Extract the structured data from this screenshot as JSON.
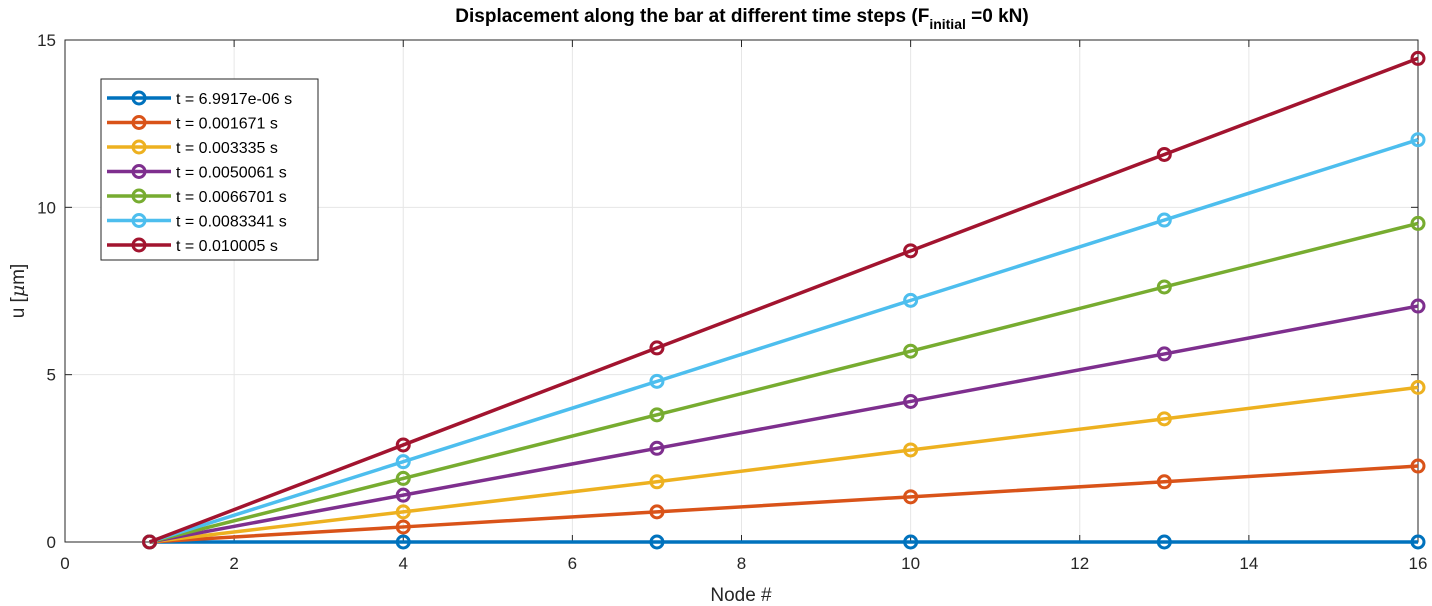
{
  "chart_data": {
    "type": "line",
    "title_main": "Displacement along the bar at different time steps (F",
    "title_sub": "initial",
    "title_end": " =0 kN)",
    "xlabel": "Node #",
    "ylabel_prefix": "u [",
    "ylabel_mu": "μ",
    "ylabel_suffix": "m]",
    "xlim": [
      0,
      16
    ],
    "ylim": [
      0,
      15
    ],
    "xticks": [
      0,
      2,
      4,
      6,
      8,
      10,
      12,
      14,
      16
    ],
    "yticks": [
      0,
      5,
      10,
      15
    ],
    "grid": true,
    "legend_location": "top-left",
    "x": [
      1,
      4,
      7,
      10,
      13,
      16
    ],
    "series": [
      {
        "name": "t = 6.9917e-06 s",
        "color": "#0072BD",
        "values": [
          0,
          0,
          0,
          0,
          0,
          0
        ]
      },
      {
        "name": "t = 0.001671 s",
        "color": "#D95319",
        "values": [
          0,
          0.45,
          0.9,
          1.35,
          1.8,
          2.27
        ]
      },
      {
        "name": "t = 0.003335 s",
        "color": "#EDB120",
        "values": [
          0,
          0.9,
          1.8,
          2.75,
          3.68,
          4.62
        ]
      },
      {
        "name": "t = 0.0050061 s",
        "color": "#7E2F8E",
        "values": [
          0,
          1.4,
          2.8,
          4.2,
          5.62,
          7.05
        ]
      },
      {
        "name": "t = 0.0066701 s",
        "color": "#77AC30",
        "values": [
          0,
          1.9,
          3.8,
          5.7,
          7.62,
          9.52
        ]
      },
      {
        "name": "t = 0.0083341 s",
        "color": "#4DBEEE",
        "values": [
          0,
          2.4,
          4.8,
          7.22,
          9.62,
          12.02
        ]
      },
      {
        "name": "t = 0.010005 s",
        "color": "#A2142F",
        "values": [
          0,
          2.9,
          5.8,
          8.7,
          11.58,
          14.45
        ]
      }
    ]
  }
}
